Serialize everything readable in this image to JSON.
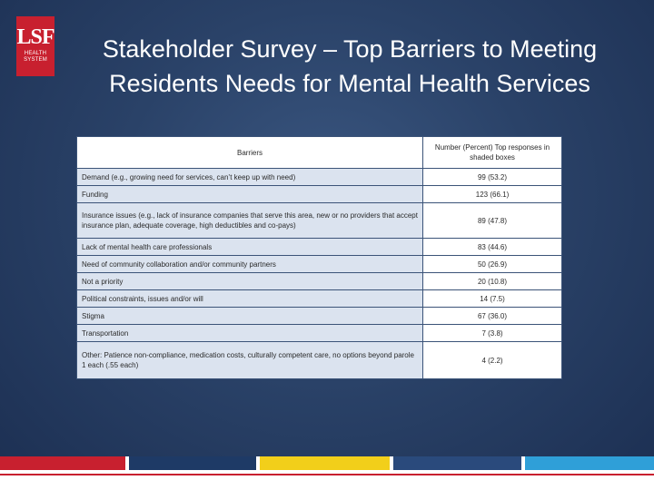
{
  "logo": {
    "mark": "LSF",
    "line1": "HEALTH",
    "line2": "SYSTEM"
  },
  "title": "Stakeholder Survey – Top Barriers to Meeting Residents Needs for Mental Health Services",
  "table": {
    "headers": {
      "barriers": "Barriers",
      "responses": "Number (Percent) Top responses in shaded boxes"
    },
    "rows": [
      {
        "barrier": "Demand (e.g., growing need for services, can’t keep up with need)",
        "value": "99 (53.2)"
      },
      {
        "barrier": "Funding",
        "value": "123 (66.1)"
      },
      {
        "barrier": "Insurance issues (e.g., lack of insurance companies that serve this area, new or no providers that accept insurance plan, adequate coverage, high deductibles and co-pays)",
        "value": "89 (47.8)"
      },
      {
        "barrier": "Lack of mental health care professionals",
        "value": "83 (44.6)"
      },
      {
        "barrier": "Need of community collaboration and/or community partners",
        "value": "50 (26.9)"
      },
      {
        "barrier": "Not a priority",
        "value": "20 (10.8)"
      },
      {
        "barrier": "Political constraints, issues and/or will",
        "value": "14 (7.5)"
      },
      {
        "barrier": "Stigma",
        "value": "67 (36.0)"
      },
      {
        "barrier": "Transportation",
        "value": "7 (3.8)"
      },
      {
        "barrier": "Other: Patience non-compliance, medication costs, culturally competent care, no options beyond parole 1 each (.55 each)",
        "value": "4 (2.2)"
      }
    ]
  },
  "colors": {
    "brand_red": "#c8202f",
    "navy": "#1e3a66",
    "yellow": "#f2cf1a",
    "blue": "#2a4a7c",
    "light_blue": "#2f9fd8",
    "shaded_cell": "#dbe3ef"
  }
}
